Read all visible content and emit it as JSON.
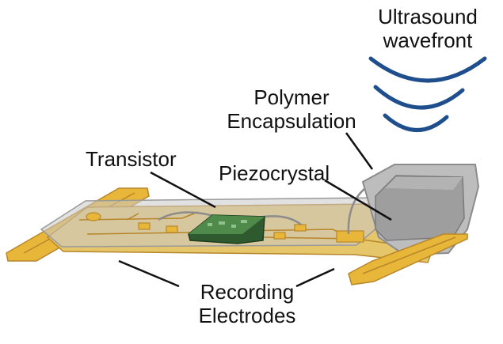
{
  "labels": {
    "ultrasound_line1": "Ultrasound",
    "ultrasound_line2": "wavefront",
    "polymer_line1": "Polymer",
    "polymer_line2": "Encapsulation",
    "transistor": "Transistor",
    "piezocrystal": "Piezocrystal",
    "recording_line1": "Recording",
    "recording_line2": "Electrodes"
  },
  "colors": {
    "wave": "#1f4e8c",
    "gold": "#e8b73a",
    "gold_dark": "#b8862a",
    "substrate": "#d9c27a",
    "encapsulation": "#b7b7b7",
    "crystal": "#9a9a9a",
    "chip": "#3d6b3a"
  },
  "icons": [
    "ultrasound-wave-icon",
    "transistor-chip-icon",
    "piezocrystal-block-icon",
    "electrode-pad-icon"
  ]
}
